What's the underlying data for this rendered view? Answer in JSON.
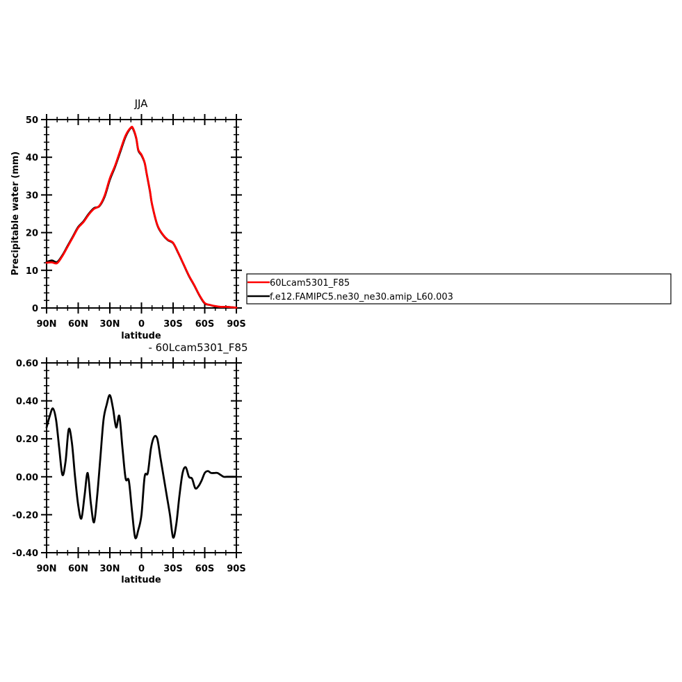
{
  "legend": {
    "placement": "right",
    "entries": [
      {
        "label": "60Lcam5301_F85",
        "color": "#ff0000"
      },
      {
        "label": "f.e12.FAMIPC5.ne30_ne30.amip_L60.003",
        "color": "#000000"
      }
    ]
  },
  "chart_data": [
    {
      "type": "line",
      "title": "JJA",
      "xlabel": "latitude",
      "ylabel": "Precipitable water (mm)",
      "xlim": [
        90,
        -90
      ],
      "ylim": [
        0,
        50
      ],
      "xticks": [
        90,
        60,
        30,
        0,
        -30,
        -60,
        -90
      ],
      "xtick_labels": [
        "90N",
        "60N",
        "30N",
        "0",
        "30S",
        "60S",
        "90S"
      ],
      "yticks": [
        0,
        10,
        20,
        30,
        40,
        50
      ],
      "ytick_labels": [
        "0",
        "10",
        "20",
        "30",
        "40",
        "50"
      ],
      "grid": false,
      "series": [
        {
          "name": "f.e12.FAMIPC5.ne30_ne30.amip_L60.003",
          "color": "#000000",
          "x": [
            90,
            85,
            80,
            75,
            70,
            65,
            60,
            55,
            50,
            45,
            40,
            35,
            30,
            25,
            20,
            15,
            10,
            8,
            5,
            3,
            0,
            -3,
            -5,
            -8,
            -10,
            -15,
            -20,
            -25,
            -30,
            -35,
            -40,
            -45,
            -50,
            -55,
            -60,
            -65,
            -70,
            -75,
            -80,
            -85,
            -90
          ],
          "y": [
            12.2,
            12.6,
            12.2,
            14.0,
            16.5,
            19.0,
            21.5,
            23.0,
            25.0,
            26.5,
            27.0,
            29.5,
            34.0,
            37.5,
            41.5,
            45.5,
            47.8,
            47.5,
            45.0,
            41.8,
            40.5,
            38.5,
            35.5,
            31.0,
            27.5,
            22.0,
            19.5,
            18.0,
            17.2,
            14.5,
            11.5,
            8.5,
            6.0,
            3.3,
            1.2,
            0.8,
            0.4,
            0.2,
            0.3,
            0.2,
            0.1
          ]
        },
        {
          "name": "60Lcam5301_F85",
          "color": "#ff0000",
          "x": [
            90,
            85,
            80,
            75,
            70,
            65,
            60,
            55,
            50,
            45,
            40,
            35,
            30,
            25,
            20,
            15,
            10,
            8,
            5,
            3,
            0,
            -3,
            -5,
            -8,
            -10,
            -15,
            -20,
            -25,
            -30,
            -35,
            -40,
            -45,
            -50,
            -55,
            -60,
            -65,
            -70,
            -75,
            -80,
            -85,
            -90
          ],
          "y": [
            12.0,
            12.1,
            11.9,
            13.8,
            16.3,
            18.8,
            21.3,
            22.8,
            24.8,
            26.3,
            27.1,
            29.8,
            34.4,
            37.8,
            41.9,
            45.8,
            47.9,
            47.7,
            45.2,
            42.0,
            40.7,
            38.6,
            35.6,
            31.2,
            27.6,
            22.1,
            19.6,
            18.1,
            17.3,
            14.6,
            11.6,
            8.6,
            6.1,
            3.4,
            1.3,
            0.8,
            0.5,
            0.3,
            0.3,
            0.2,
            0.1
          ]
        }
      ]
    },
    {
      "type": "line",
      "title": "- 60Lcam5301_F85",
      "xlabel": "latitude",
      "ylabel": "",
      "xlim": [
        90,
        -90
      ],
      "ylim": [
        -0.4,
        0.6
      ],
      "xticks": [
        90,
        60,
        30,
        0,
        -30,
        -60,
        -90
      ],
      "xtick_labels": [
        "90N",
        "60N",
        "30N",
        "0",
        "30S",
        "60S",
        "90S"
      ],
      "yticks": [
        -0.4,
        -0.2,
        0,
        0.2,
        0.4,
        0.6
      ],
      "ytick_labels": [
        "-0.40",
        "-0.20",
        "0.00",
        "0.20",
        "0.40",
        "0.60"
      ],
      "grid": false,
      "series": [
        {
          "color": "#000000",
          "x": [
            90,
            87,
            84,
            81,
            78,
            75,
            72,
            69,
            66,
            63,
            60,
            57,
            54,
            51,
            48,
            45,
            42,
            39,
            36,
            33,
            30,
            27,
            24,
            21,
            18,
            15,
            12,
            9,
            6,
            3,
            0,
            -3,
            -6,
            -9,
            -12,
            -15,
            -18,
            -21,
            -24,
            -27,
            -30,
            -33,
            -36,
            -39,
            -42,
            -45,
            -48,
            -51,
            -54,
            -57,
            -60,
            -63,
            -66,
            -69,
            -72,
            -75,
            -78,
            -81,
            -84,
            -87,
            -90
          ],
          "y": [
            0.26,
            0.32,
            0.36,
            0.3,
            0.15,
            0.01,
            0.08,
            0.25,
            0.18,
            0.0,
            -0.15,
            -0.22,
            -0.1,
            0.02,
            -0.14,
            -0.24,
            -0.1,
            0.1,
            0.3,
            0.38,
            0.43,
            0.36,
            0.26,
            0.32,
            0.15,
            -0.01,
            -0.02,
            -0.18,
            -0.32,
            -0.28,
            -0.2,
            0.0,
            0.02,
            0.15,
            0.21,
            0.2,
            0.1,
            0.0,
            -0.1,
            -0.2,
            -0.32,
            -0.25,
            -0.1,
            0.02,
            0.05,
            0.0,
            -0.01,
            -0.06,
            -0.05,
            -0.02,
            0.02,
            0.03,
            0.02,
            0.02,
            0.02,
            0.01,
            0.0,
            0.0,
            0.0,
            0.0,
            0.0
          ]
        }
      ]
    }
  ]
}
